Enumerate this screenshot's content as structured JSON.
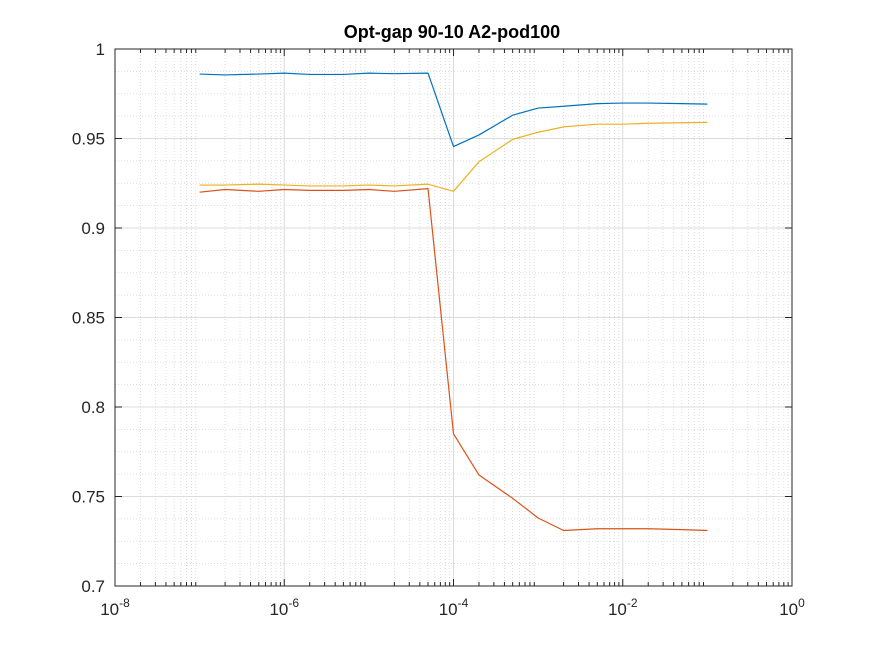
{
  "chart_data": {
    "type": "line",
    "title": "Opt-gap 90-10 A2-pod100",
    "xlabel": "",
    "ylabel": "",
    "xscale": "log",
    "xlim": [
      1e-08,
      1
    ],
    "ylim": [
      0.7,
      1
    ],
    "grid": true,
    "minor_grid": true,
    "legend": "none",
    "x_ticks": [
      {
        "value": 1e-08,
        "base": "10",
        "exp": "-8"
      },
      {
        "value": 1e-06,
        "base": "10",
        "exp": "-6"
      },
      {
        "value": 0.0001,
        "base": "10",
        "exp": "-4"
      },
      {
        "value": 0.01,
        "base": "10",
        "exp": "-2"
      },
      {
        "value": 1,
        "base": "10",
        "exp": "0"
      }
    ],
    "y_ticks": [
      {
        "value": 0.7,
        "label": "0.7"
      },
      {
        "value": 0.75,
        "label": "0.75"
      },
      {
        "value": 0.8,
        "label": "0.8"
      },
      {
        "value": 0.85,
        "label": "0.85"
      },
      {
        "value": 0.9,
        "label": "0.9"
      },
      {
        "value": 0.95,
        "label": "0.95"
      },
      {
        "value": 1.0,
        "label": "1"
      }
    ],
    "x": [
      1e-07,
      2e-07,
      5e-07,
      1e-06,
      2e-06,
      5e-06,
      1e-05,
      2e-05,
      5e-05,
      0.0001,
      0.0002,
      0.0005,
      0.001,
      0.002,
      0.005,
      0.01,
      0.02,
      0.05,
      0.1
    ],
    "series": [
      {
        "color": "#0072bd",
        "values": [
          0.986,
          0.9855,
          0.986,
          0.9865,
          0.9858,
          0.9858,
          0.9865,
          0.9862,
          0.9865,
          0.9455,
          0.952,
          0.963,
          0.967,
          0.968,
          0.9695,
          0.9698,
          0.9698,
          0.9695,
          0.9692
        ]
      },
      {
        "color": "#d95319",
        "values": [
          0.92,
          0.9215,
          0.9205,
          0.9215,
          0.921,
          0.921,
          0.9215,
          0.9205,
          0.922,
          0.785,
          0.762,
          0.749,
          0.738,
          0.731,
          0.732,
          0.732,
          0.732,
          0.7315,
          0.731
        ]
      },
      {
        "color": "#edb120",
        "values": [
          0.924,
          0.924,
          0.9245,
          0.924,
          0.9235,
          0.9235,
          0.924,
          0.9235,
          0.9245,
          0.9205,
          0.937,
          0.9495,
          0.9535,
          0.9565,
          0.958,
          0.958,
          0.9585,
          0.9588,
          0.959
        ]
      }
    ]
  }
}
